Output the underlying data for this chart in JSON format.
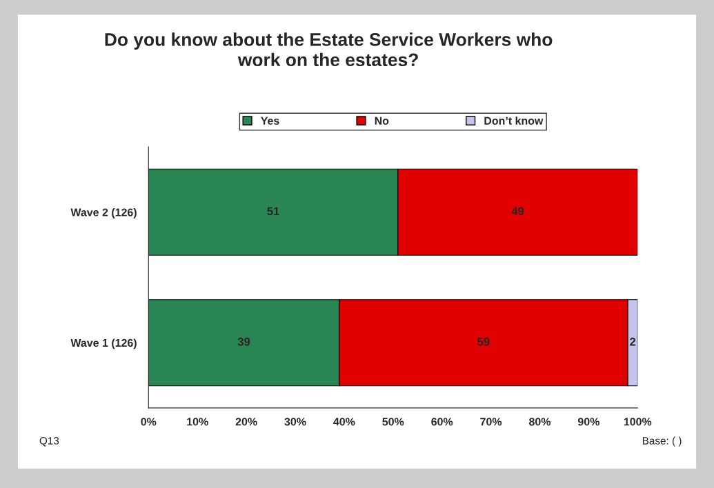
{
  "chart_data": {
    "type": "bar",
    "orientation": "horizontal",
    "stacked": true,
    "title": "Do you know about the Estate Service Workers who\nwork on the estates?",
    "categories": [
      "Wave 2 (126)",
      "Wave 1 (126)"
    ],
    "series": [
      {
        "name": "Yes",
        "color": "#2a8555",
        "values": [
          51,
          39
        ]
      },
      {
        "name": "No",
        "color": "#e00000",
        "values": [
          49,
          59
        ]
      },
      {
        "name": "Don’t know",
        "color": "#c4c4ee",
        "values": [
          null,
          2
        ]
      }
    ],
    "xlim": [
      0,
      100
    ],
    "xticks": [
      {
        "value": 0,
        "label": "0%"
      },
      {
        "value": 10,
        "label": "10%"
      },
      {
        "value": 20,
        "label": "20%"
      },
      {
        "value": 30,
        "label": "30%"
      },
      {
        "value": 40,
        "label": "40%"
      },
      {
        "value": 50,
        "label": "50%"
      },
      {
        "value": 60,
        "label": "60%"
      },
      {
        "value": 70,
        "label": "70%"
      },
      {
        "value": 80,
        "label": "80%"
      },
      {
        "value": 90,
        "label": "90%"
      },
      {
        "value": 100,
        "label": "100%"
      }
    ],
    "data_labels": true,
    "legend": "top",
    "grid": false,
    "annotations": [
      "Q13",
      "Base: ( )"
    ]
  }
}
